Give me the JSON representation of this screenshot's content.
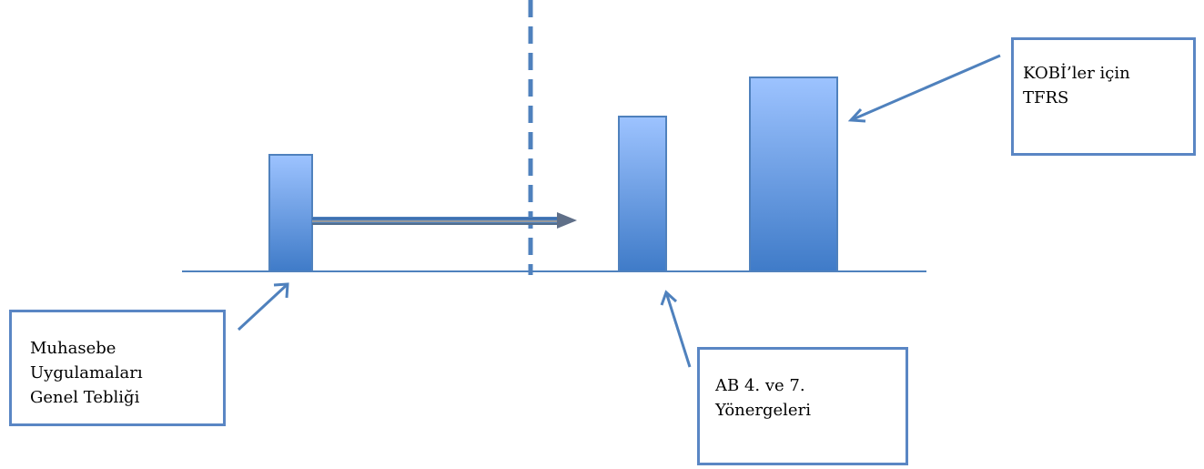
{
  "colors": {
    "accent": "#4f81bd",
    "bar_top": "#9dc3ff",
    "bar_bottom": "#3f7bc8",
    "box_border": "#5a86c4",
    "transition_arrow": "#7f7f7f"
  },
  "icons": {
    "muhasebe_pointer": "arrow-up-right",
    "ab_pointer": "arrow-up",
    "kobi_pointer": "arrow-down-left",
    "transition": "arrow-right"
  },
  "labels": {
    "muhasebe": "Muhasebe\nUygulamaları\nGenel Tebliği",
    "ab": "AB 4. ve 7.\nYönergeleri",
    "kobi": "KOBİ’ler için\nTFRS"
  },
  "bars": {
    "muhasebe_level": 0.6,
    "ab_level": 0.8,
    "kobi_level": 1.0
  }
}
